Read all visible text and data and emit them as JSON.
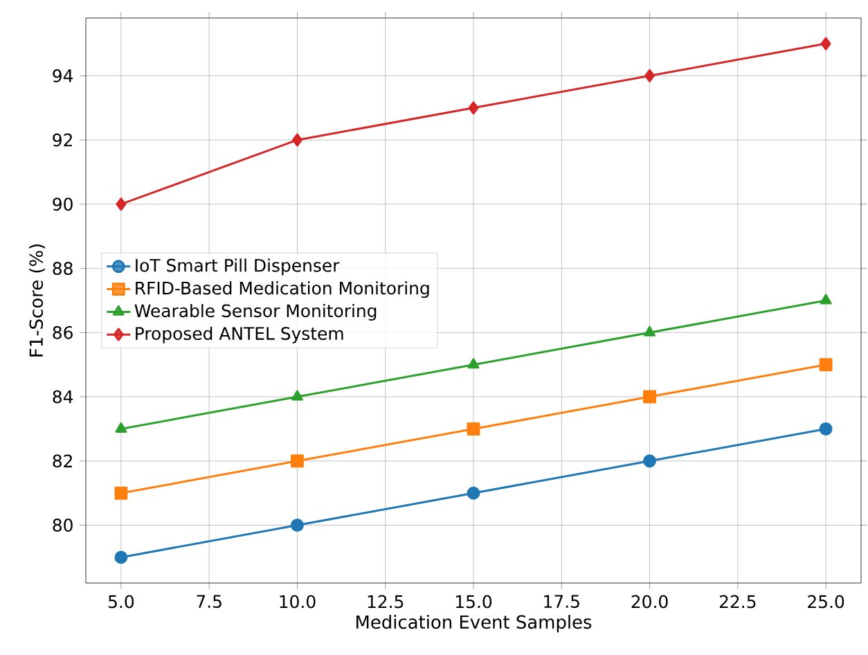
{
  "chart_data": {
    "type": "line",
    "xlabel": "Medication Event Samples",
    "ylabel": "F1-Score (%)",
    "x": [
      5,
      10,
      15,
      20,
      25
    ],
    "series": [
      {
        "name": "IoT Smart Pill Dispenser",
        "color": "#1f77b4",
        "marker": "circle",
        "values": [
          79,
          80,
          81,
          82,
          83
        ]
      },
      {
        "name": "RFID-Based Medication Monitoring",
        "color": "#ff7f0e",
        "marker": "square",
        "values": [
          81,
          82,
          83,
          84,
          85
        ]
      },
      {
        "name": "Wearable Sensor Monitoring",
        "color": "#2ca02c",
        "marker": "triangle",
        "values": [
          83,
          84,
          85,
          86,
          87
        ]
      },
      {
        "name": "Proposed ANTEL System",
        "color": "#d62728",
        "marker": "diamond",
        "values": [
          90,
          92,
          93,
          94,
          95
        ]
      }
    ],
    "xlim": [
      4,
      26
    ],
    "ylim": [
      78.2,
      95.8
    ],
    "xticks": [
      {
        "value": 5,
        "label": "5.0"
      },
      {
        "value": 7.5,
        "label": "7.5"
      },
      {
        "value": 10,
        "label": "10.0"
      },
      {
        "value": 12.5,
        "label": "12.5"
      },
      {
        "value": 15,
        "label": "15.0"
      },
      {
        "value": 17.5,
        "label": "17.5"
      },
      {
        "value": 20,
        "label": "20.0"
      },
      {
        "value": 22.5,
        "label": "22.5"
      },
      {
        "value": 25,
        "label": "25.0"
      }
    ],
    "yticks": [
      80,
      82,
      84,
      86,
      88,
      90,
      92,
      94
    ],
    "grid": true,
    "legend": "left",
    "line_style": "solid"
  }
}
